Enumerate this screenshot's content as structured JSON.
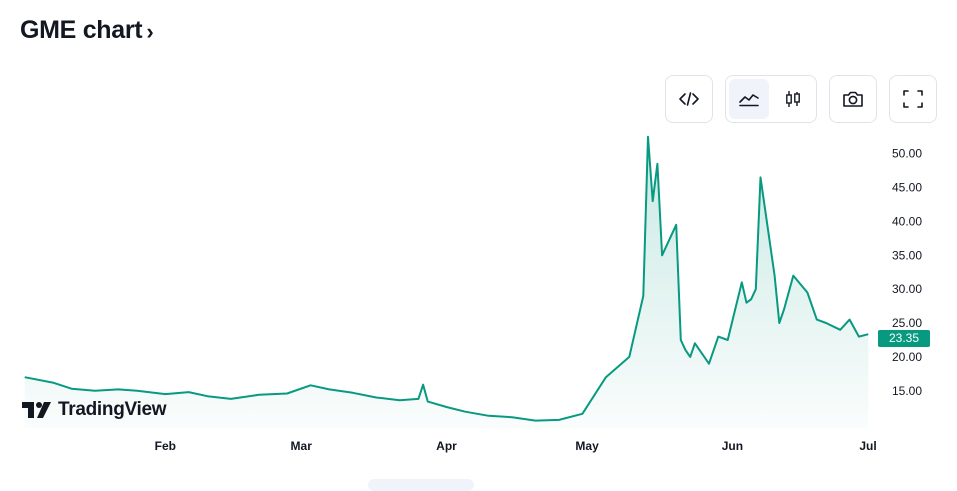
{
  "header": {
    "title": "GME chart",
    "chevron": "›"
  },
  "toolbar": {
    "buttons": [
      {
        "icon": "embed-code-icon"
      },
      {
        "icon": "area-chart-icon",
        "active": true
      },
      {
        "icon": "candlestick-icon",
        "active": false
      },
      {
        "icon": "camera-icon"
      },
      {
        "icon": "fullscreen-icon"
      }
    ]
  },
  "branding": {
    "logo_text": "TradingView"
  },
  "colors": {
    "line": "#089981",
    "fill": "#089981",
    "badge": "#089981",
    "text": "#131722"
  },
  "chart_data": {
    "type": "area",
    "y_tick_labels": [
      "50.00",
      "45.00",
      "40.00",
      "35.00",
      "30.00",
      "25.00",
      "20.00",
      "15.00"
    ],
    "x_tick_labels": [
      "Feb",
      "Mar",
      "Apr",
      "May",
      "Jun",
      "Jul"
    ],
    "ylim": [
      9.5,
      53.5
    ],
    "last_price": "23.35",
    "series": [
      {
        "x": [
          "2024-01-02",
          "2024-01-08",
          "2024-01-12",
          "2024-01-17",
          "2024-01-22",
          "2024-01-26",
          "2024-02-01",
          "2024-02-06",
          "2024-02-10",
          "2024-02-15",
          "2024-02-21",
          "2024-02-27",
          "2024-03-03",
          "2024-03-07",
          "2024-03-12",
          "2024-03-17",
          "2024-03-22",
          "2024-03-26",
          "2024-03-27",
          "2024-03-28",
          "2024-04-01",
          "2024-04-05",
          "2024-04-10",
          "2024-04-15",
          "2024-04-20",
          "2024-04-25",
          "2024-04-30",
          "2024-05-05",
          "2024-05-10",
          "2024-05-13",
          "2024-05-14",
          "2024-05-15",
          "2024-05-16",
          "2024-05-17",
          "2024-05-20",
          "2024-05-21",
          "2024-05-22",
          "2024-05-23",
          "2024-05-24",
          "2024-05-27",
          "2024-05-29",
          "2024-05-31",
          "2024-06-03",
          "2024-06-04",
          "2024-06-05",
          "2024-06-06",
          "2024-06-07",
          "2024-06-10",
          "2024-06-11",
          "2024-06-12",
          "2024-06-14",
          "2024-06-17",
          "2024-06-19",
          "2024-06-21",
          "2024-06-24",
          "2024-06-26",
          "2024-06-28",
          "2024-06-30"
        ],
        "values": [
          17.0,
          16.2,
          15.3,
          15.0,
          15.2,
          15.0,
          14.5,
          14.8,
          14.2,
          13.8,
          14.4,
          14.6,
          15.8,
          15.2,
          14.7,
          14.0,
          13.6,
          13.8,
          15.9,
          13.4,
          12.6,
          11.9,
          11.3,
          11.1,
          10.6,
          10.7,
          11.6,
          17.0,
          20.0,
          29.0,
          52.5,
          43.0,
          48.5,
          35.0,
          39.5,
          22.5,
          21.0,
          20.0,
          22.0,
          19.0,
          23.0,
          22.5,
          31.0,
          28.0,
          28.5,
          30.0,
          46.5,
          32.0,
          25.0,
          27.0,
          32.0,
          29.5,
          25.5,
          25.0,
          24.0,
          25.5,
          23.0,
          23.35
        ]
      }
    ]
  }
}
